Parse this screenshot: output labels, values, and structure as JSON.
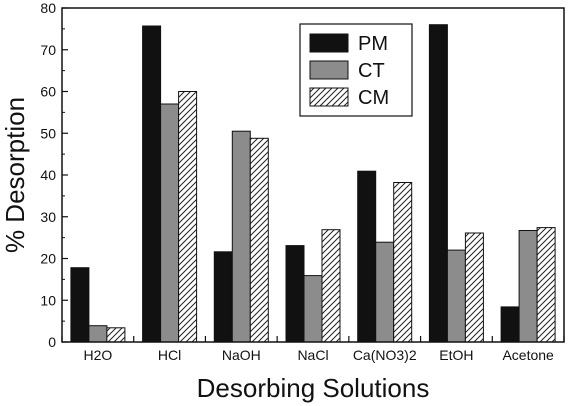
{
  "chart_data": {
    "type": "bar",
    "xlabel": "Desorbing Solutions",
    "ylabel": "% Desorption",
    "ylim": [
      0,
      80
    ],
    "yticks": [
      0,
      10,
      20,
      30,
      40,
      50,
      60,
      70,
      80
    ],
    "categories": [
      "H2O",
      "HCl",
      "NaOH",
      "NaCl",
      "Ca(NO3)2",
      "EtOH",
      "Acetone"
    ],
    "series": [
      {
        "name": "PM",
        "color": "#111111",
        "pattern": "solid",
        "values": [
          17.8,
          75.7,
          21.6,
          23.1,
          40.9,
          76.0,
          8.4
        ]
      },
      {
        "name": "CT",
        "color": "#8c8c8c",
        "pattern": "solid",
        "values": [
          3.9,
          57.0,
          50.5,
          15.9,
          23.9,
          22.0,
          26.7
        ]
      },
      {
        "name": "CM",
        "color": "#ffffff",
        "pattern": "hatch",
        "values": [
          3.4,
          60.0,
          48.8,
          26.9,
          38.2,
          26.1,
          27.4
        ]
      }
    ],
    "legend": "top-right",
    "grid": false
  }
}
